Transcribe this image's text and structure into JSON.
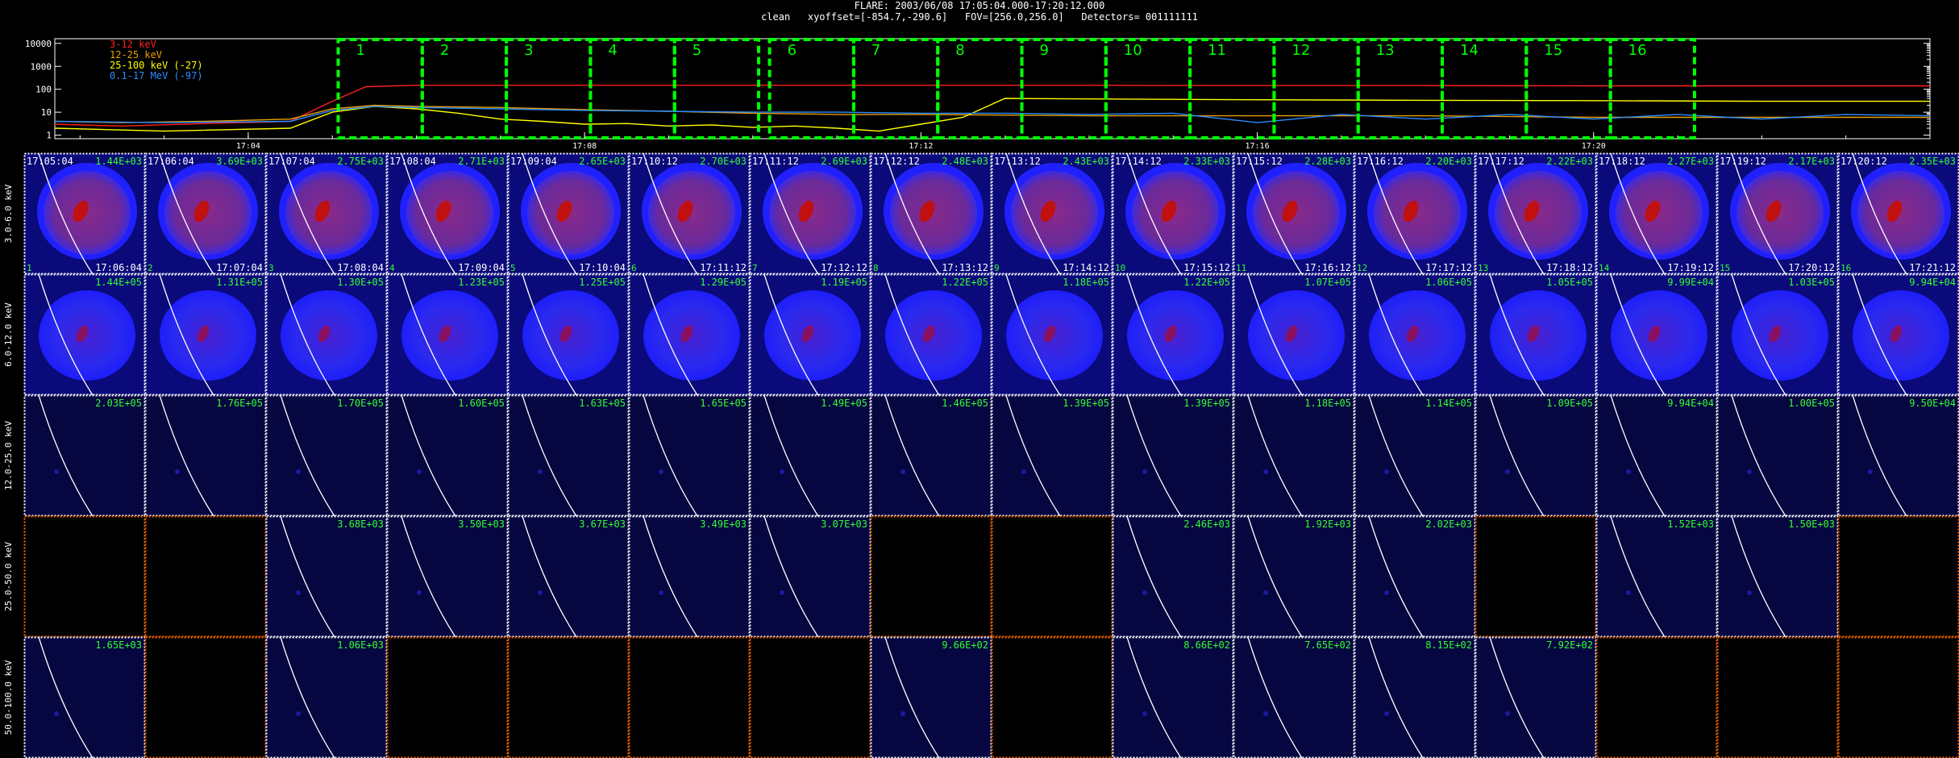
{
  "header": {
    "line1": "FLARE: 2003/06/08 17:05:04.000-17:20:12.000",
    "line2": "clean   xyoffset=[-854.7,-290.6]   FOV=[256.0,256.0]   Detectors= 001111111"
  },
  "colors": {
    "band1": "#ff2020",
    "band2": "#e8a000",
    "band3": "#ffff00",
    "band4": "#2a8cff",
    "highlight_box": "#00ff00",
    "panel_border": "#ffffff",
    "empty_border": "#ff6a00",
    "peak_label": "#33ff33"
  },
  "chart_data": [
    {
      "type": "line",
      "title": "",
      "y_scale": "log",
      "y_ticks": [
        "1",
        "10",
        "100",
        "1000",
        "10000"
      ],
      "ylim": [
        0.7,
        16000
      ],
      "x_ticks": [
        "17:04",
        "17:08",
        "17:12",
        "17:16",
        "17:20"
      ],
      "x_tick_minutes": [
        4,
        8,
        12,
        16,
        20
      ],
      "xlim_minutes": [
        1.7,
        24.0
      ],
      "legend_position": "top-left",
      "series": [
        {
          "name": "3-12 keV",
          "color": "#ff2020",
          "x": [
            1.7,
            2.5,
            3.5,
            4.5,
            5.0,
            5.4,
            6.0,
            7.0,
            8.0,
            10.0,
            12.0,
            14.0,
            16.0,
            18.0,
            20.0,
            22.0,
            24.0
          ],
          "y": [
            3,
            2.5,
            3.2,
            4,
            30,
            130,
            150,
            150,
            150,
            150,
            150,
            150,
            145,
            145,
            140,
            140,
            140
          ]
        },
        {
          "name": "12-25 keV",
          "color": "#e8a000",
          "x": [
            1.7,
            2.5,
            3.5,
            4.5,
            5.0,
            5.5,
            6.0,
            7.0,
            8.0,
            9.0,
            10.0,
            11.0,
            12.0,
            14.0,
            16.0,
            18.0,
            20.0,
            22.0,
            24.0
          ],
          "y": [
            4,
            3.5,
            4,
            5,
            14,
            20,
            18,
            16,
            13,
            11,
            9,
            8,
            8,
            7,
            7,
            7,
            6,
            6,
            6
          ]
        },
        {
          "name": "25-100 keV (-27)",
          "color": "#ffff00",
          "x": [
            1.7,
            3.0,
            4.5,
            5.0,
            5.5,
            6.0,
            6.5,
            7.0,
            7.5,
            8.0,
            8.5,
            9.0,
            9.5,
            10.0,
            10.5,
            11.0,
            11.5,
            12.0,
            12.5,
            13.0,
            14.0,
            16.0,
            18.0,
            20.0,
            22.0,
            24.0
          ],
          "y": [
            2,
            1.5,
            2,
            10,
            18,
            14,
            9,
            5,
            4,
            3,
            3.2,
            2.5,
            2.8,
            2.2,
            2.5,
            2,
            1.5,
            3,
            6,
            40,
            38,
            35,
            33,
            32,
            30,
            30
          ]
        },
        {
          "name": "0.1-17 MeV (-97)",
          "color": "#2a8cff",
          "x": [
            1.7,
            3.0,
            4.5,
            5.0,
            5.5,
            6.0,
            7.0,
            8.0,
            9.0,
            10.0,
            11.0,
            12.0,
            13.0,
            14.0,
            15.0,
            16.0,
            17.0,
            18.0,
            19.0,
            20.0,
            21.0,
            22.0,
            23.0,
            24.0
          ],
          "y": [
            4,
            3.5,
            4,
            12,
            18,
            16,
            14,
            12,
            11,
            10,
            10,
            9,
            9,
            8,
            9,
            3.5,
            8,
            5,
            8,
            5,
            8,
            5,
            8,
            7
          ]
        }
      ],
      "highlight_boxes": {
        "labels": [
          "1",
          "2",
          "3",
          "4",
          "5",
          "6",
          "7",
          "8",
          "9",
          "10",
          "11",
          "12",
          "13",
          "14",
          "15",
          "16"
        ],
        "start_minutes": [
          5.07,
          6.07,
          7.07,
          8.07,
          9.07,
          10.2,
          11.2,
          12.2,
          13.2,
          14.2,
          15.2,
          16.2,
          17.2,
          18.2,
          19.2,
          20.2
        ],
        "end_minutes": [
          6.07,
          7.07,
          8.07,
          9.07,
          10.07,
          11.2,
          12.2,
          13.2,
          14.2,
          15.2,
          16.2,
          17.2,
          18.2,
          19.2,
          20.2,
          21.2
        ]
      }
    },
    {
      "type": "heatmap",
      "columns": 16,
      "rows": [
        {
          "label": "3.0-6.0 keV",
          "peaks": [
            "1.44E+03",
            "3.69E+03",
            "2.75E+03",
            "2.71E+03",
            "2.65E+03",
            "2.70E+03",
            "2.69E+03",
            "2.48E+03",
            "2.43E+03",
            "2.33E+03",
            "2.28E+03",
            "2.20E+03",
            "2.22E+03",
            "2.27E+03",
            "2.17E+03",
            "2.35E+03"
          ]
        },
        {
          "label": "6.0-12.0 keV",
          "peaks": [
            "1.44E+05",
            "1.31E+05",
            "1.30E+05",
            "1.23E+05",
            "1.25E+05",
            "1.29E+05",
            "1.19E+05",
            "1.22E+05",
            "1.18E+05",
            "1.22E+05",
            "1.07E+05",
            "1.06E+05",
            "1.05E+05",
            "9.99E+04",
            "1.03E+05",
            "9.94E+04"
          ]
        },
        {
          "label": "12.0-25.0 keV",
          "peaks": [
            "2.03E+05",
            "1.76E+05",
            "1.70E+05",
            "1.60E+05",
            "1.63E+05",
            "1.65E+05",
            "1.49E+05",
            "1.46E+05",
            "1.39E+05",
            "1.39E+05",
            "1.18E+05",
            "1.14E+05",
            "1.09E+05",
            "9.94E+04",
            "1.00E+05",
            "9.50E+04"
          ]
        },
        {
          "label": "25.0-50.0 keV",
          "peaks": [
            "",
            "",
            "3.68E+03",
            "3.50E+03",
            "3.67E+03",
            "3.49E+03",
            "3.07E+03",
            "",
            "",
            "2.46E+03",
            "1.92E+03",
            "2.02E+03",
            "",
            "1.52E+03",
            "1.50E+03",
            ""
          ]
        },
        {
          "label": "50.0-100.0 keV",
          "peaks": [
            "1.65E+03",
            "",
            "1.06E+03",
            "",
            "",
            "",
            "",
            "9.66E+02",
            "",
            "8.66E+02",
            "7.65E+02",
            "8.15E+02",
            "7.92E+02",
            "",
            "",
            ""
          ]
        }
      ],
      "start_times": [
        "17:05:04",
        "17:06:04",
        "17:07:04",
        "17:08:04",
        "17:09:04",
        "17:10:12",
        "17:11:12",
        "17:12:12",
        "17:13:12",
        "17:14:12",
        "17:15:12",
        "17:16:12",
        "17:17:12",
        "17:18:12",
        "17:19:12",
        "17:20:12"
      ],
      "end_times": [
        "17:06:04",
        "17:07:04",
        "17:08:04",
        "17:09:04",
        "17:10:04",
        "17:11:12",
        "17:12:12",
        "17:13:12",
        "17:14:12",
        "17:15:12",
        "17:16:12",
        "17:17:12",
        "17:18:12",
        "17:19:12",
        "17:20:12",
        "17:21:12"
      ],
      "interval_numbers": [
        "1",
        "2",
        "3",
        "4",
        "5",
        "6",
        "7",
        "8",
        "9",
        "10",
        "11",
        "12",
        "13",
        "14",
        "15",
        "16"
      ]
    }
  ]
}
